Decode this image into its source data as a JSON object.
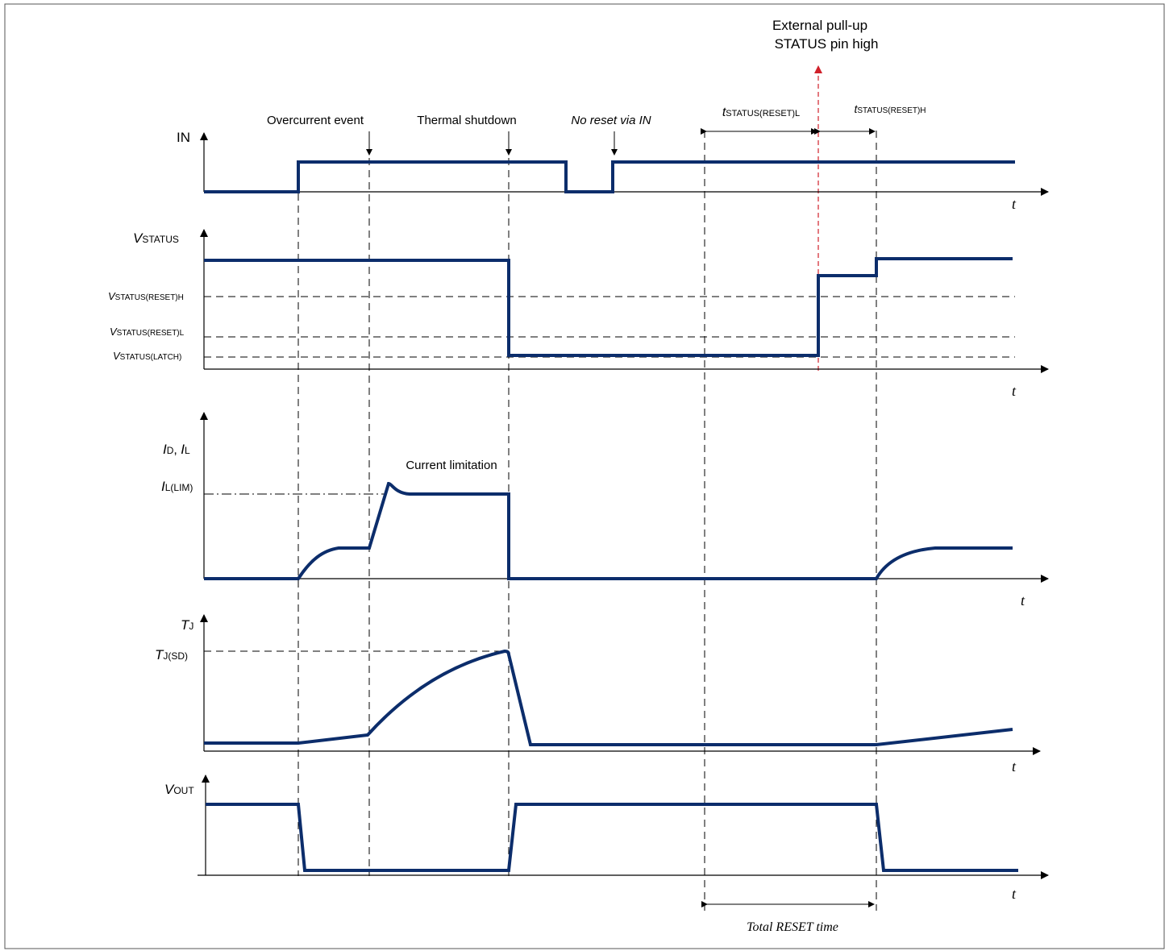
{
  "annotations": {
    "overcurrent_event": "Overcurrent event",
    "thermal_shutdown": "Thermal shutdown",
    "no_reset_via_in": "No reset via IN",
    "external_pullup_line1": "External pull-up",
    "external_pullup_line2": "STATUS pin high",
    "current_limitation": "Current limitation",
    "total_reset_time": "Total RESET time"
  },
  "timing": {
    "t_sym": "t",
    "reset_low_sub": "STATUS(RESET)L",
    "reset_high_sub": "STATUS(RESET)H"
  },
  "signals": {
    "in": {
      "label": "IN",
      "time": "t"
    },
    "vstatus": {
      "label_main": "V",
      "label_sub": "STATUS",
      "time": "t",
      "levels": {
        "reset_h_main": "V",
        "reset_h_sub": "STATUS(RESET)H",
        "reset_l_main": "V",
        "reset_l_sub": "STATUS(RESET)L",
        "latch_main": "V",
        "latch_sub": "STATUS(LATCH)"
      }
    },
    "current": {
      "label_id_main": "I",
      "label_id_sub": "D",
      "label_sep": ", ",
      "label_il_main": "I",
      "label_il_sub": "L",
      "time": "t",
      "lim_main": "I",
      "lim_sub": "L(LIM)"
    },
    "tj": {
      "label_main": "T",
      "label_sub": "J",
      "time": "t",
      "sd_main": "T",
      "sd_sub": "J(SD)"
    },
    "vout": {
      "label_main": "V",
      "label_sub": "OUT",
      "time": "t"
    }
  },
  "colors": {
    "waveform": "#0c2d6b",
    "pullup_marker": "#d0202a",
    "frame": "#555555"
  }
}
